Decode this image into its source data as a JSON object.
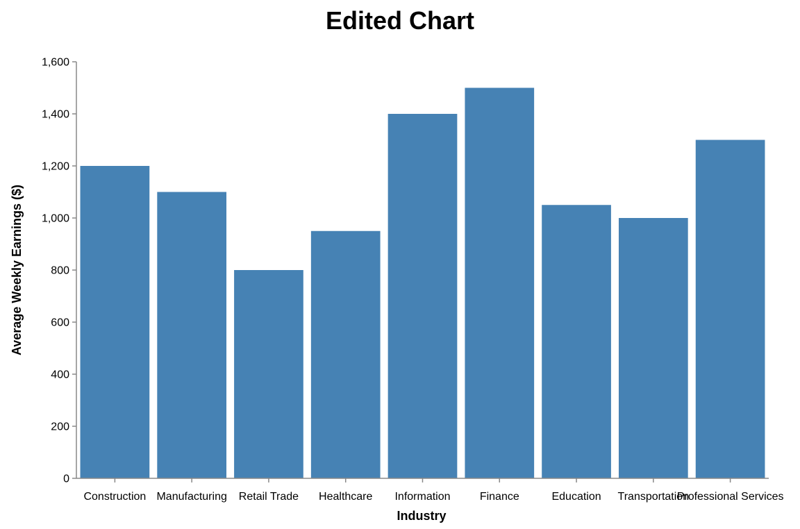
{
  "chart_data": {
    "type": "bar",
    "title": "Edited Chart",
    "xlabel": "Industry",
    "ylabel": "Average Weekly Earnings ($)",
    "categories": [
      "Construction",
      "Manufacturing",
      "Retail Trade",
      "Healthcare",
      "Information",
      "Finance",
      "Education",
      "Transportation",
      "Professional Services"
    ],
    "values": [
      1200,
      1100,
      800,
      950,
      1400,
      1500,
      1050,
      1000,
      1300
    ],
    "ylim": [
      0,
      1600
    ],
    "yticks": [
      "0",
      "200",
      "400",
      "600",
      "800",
      "1,000",
      "1,200",
      "1,400",
      "1,600"
    ],
    "grid": false,
    "legend": "none",
    "bar_color": "#4682b4"
  }
}
